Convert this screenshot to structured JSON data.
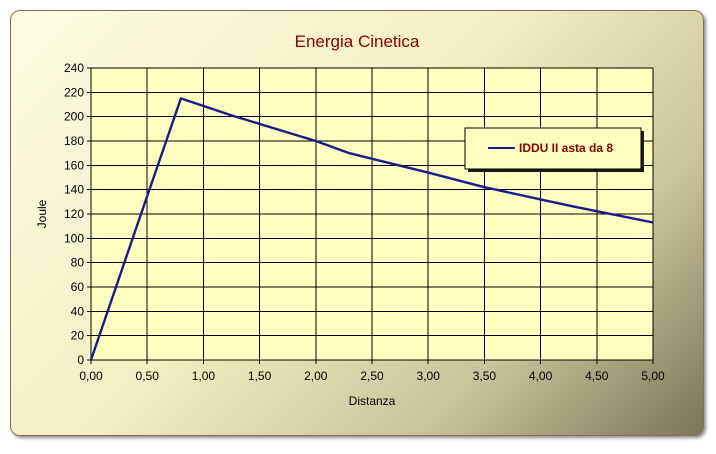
{
  "chart_data": {
    "type": "line",
    "title": "Energia Cinetica",
    "xlabel": "Distanza",
    "ylabel": "Joule",
    "xlim": [
      0,
      5
    ],
    "ylim": [
      0,
      240
    ],
    "x_ticks": [
      "0,00",
      "0,50",
      "1,00",
      "1,50",
      "2,00",
      "2,50",
      "3,00",
      "3,50",
      "4,00",
      "4,50",
      "5,00"
    ],
    "y_ticks": [
      "0",
      "20",
      "40",
      "60",
      "80",
      "100",
      "120",
      "140",
      "160",
      "180",
      "200",
      "220",
      "240"
    ],
    "grid": true,
    "legend_position": "right",
    "plot_background": "#ffffc0",
    "series": [
      {
        "name": "IDDU II asta da 8",
        "color": "#1a1a8c",
        "points": [
          [
            0.0,
            0
          ],
          [
            0.4,
            108
          ],
          [
            0.8,
            215
          ],
          [
            1.25,
            201
          ],
          [
            2.0,
            180
          ],
          [
            2.3,
            170
          ],
          [
            3.0,
            154
          ],
          [
            3.5,
            142
          ],
          [
            4.0,
            132
          ],
          [
            4.3,
            126
          ],
          [
            5.0,
            113
          ]
        ]
      }
    ]
  }
}
